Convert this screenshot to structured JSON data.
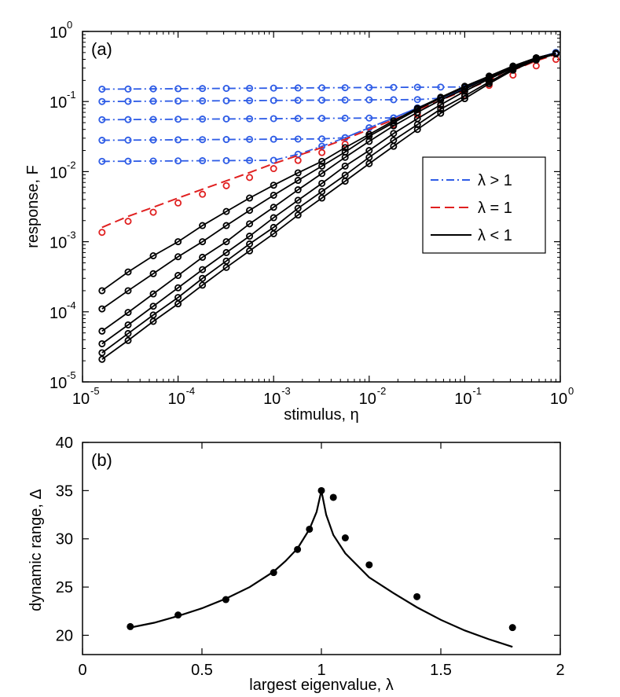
{
  "chart_data": [
    {
      "panel": "(a)",
      "type": "line",
      "scale": "log-log",
      "xlabel": "stimulus, η",
      "ylabel": "response, F",
      "xlim": [
        1e-05,
        1
      ],
      "ylim": [
        1e-05,
        1
      ],
      "xticks": [
        {
          "base": "10",
          "exp": "-5"
        },
        {
          "base": "10",
          "exp": "-4"
        },
        {
          "base": "10",
          "exp": "-3"
        },
        {
          "base": "10",
          "exp": "-2"
        },
        {
          "base": "10",
          "exp": "-1"
        },
        {
          "base": "10",
          "exp": "0"
        }
      ],
      "yticks": [
        {
          "base": "10",
          "exp": "-5"
        },
        {
          "base": "10",
          "exp": "-4"
        },
        {
          "base": "10",
          "exp": "-3"
        },
        {
          "base": "10",
          "exp": "-2"
        },
        {
          "base": "10",
          "exp": "-1"
        },
        {
          "base": "10",
          "exp": "0"
        }
      ],
      "legend_position": "center-right",
      "legend": [
        {
          "label": "λ > 1",
          "style": "dash-dot",
          "color": "#2e5ce6"
        },
        {
          "label": "λ = 1",
          "style": "dashed",
          "color": "#e02020"
        },
        {
          "label": "λ < 1",
          "style": "solid",
          "color": "#000000"
        }
      ],
      "x": [
        1.6e-05,
        3e-05,
        5.5e-05,
        0.0001,
        0.00018,
        0.00032,
        0.00056,
        0.001,
        0.0018,
        0.0032,
        0.0056,
        0.01,
        0.018,
        0.032,
        0.056,
        0.1,
        0.18,
        0.32,
        0.56,
        0.9
      ],
      "series_below": [
        {
          "lambda": 0.2,
          "values": [
            2.1e-05,
            3.9e-05,
            7.3e-05,
            0.00013,
            0.00024,
            0.00043,
            0.00074,
            0.0013,
            0.0024,
            0.0042,
            0.0073,
            0.013,
            0.023,
            0.04,
            0.068,
            0.11,
            0.18,
            0.28,
            0.39,
            0.48
          ]
        },
        {
          "lambda": 0.4,
          "values": [
            2.6e-05,
            4.9e-05,
            9e-05,
            0.00016,
            0.0003,
            0.00053,
            0.00093,
            0.0016,
            0.003,
            0.0052,
            0.0089,
            0.016,
            0.028,
            0.047,
            0.078,
            0.12,
            0.19,
            0.29,
            0.4,
            0.48
          ]
        },
        {
          "lambda": 0.6,
          "values": [
            3.5e-05,
            6.5e-05,
            0.00012,
            0.00022,
            0.0004,
            0.0007,
            0.0012,
            0.0022,
            0.0039,
            0.0068,
            0.012,
            0.02,
            0.035,
            0.057,
            0.09,
            0.14,
            0.21,
            0.3,
            0.41,
            0.48
          ]
        },
        {
          "lambda": 0.8,
          "values": [
            5.3e-05,
            9.8e-05,
            0.00018,
            0.00033,
            0.0006,
            0.001,
            0.0018,
            0.0031,
            0.0055,
            0.0094,
            0.016,
            0.027,
            0.045,
            0.07,
            0.105,
            0.15,
            0.22,
            0.31,
            0.42,
            0.48
          ]
        },
        {
          "lambda": 0.9,
          "values": [
            0.00011,
            0.0002,
            0.00035,
            0.00061,
            0.001,
            0.0017,
            0.0028,
            0.0046,
            0.0075,
            0.012,
            0.019,
            0.032,
            0.05,
            0.077,
            0.112,
            0.16,
            0.23,
            0.32,
            0.42,
            0.49
          ]
        },
        {
          "lambda": 0.95,
          "values": [
            0.0002,
            0.00037,
            0.00063,
            0.001,
            0.0017,
            0.0027,
            0.0042,
            0.0064,
            0.0096,
            0.014,
            0.022,
            0.034,
            0.053,
            0.08,
            0.115,
            0.165,
            0.23,
            0.32,
            0.42,
            0.49
          ]
        }
      ],
      "series_critical": {
        "lambda": 1,
        "values": [
          0.0016,
          0.0023,
          0.0031,
          0.0042,
          0.0056,
          0.0074,
          0.0097,
          0.013,
          0.017,
          0.022,
          0.029,
          0.04,
          0.055,
          0.076,
          0.104,
          0.145,
          0.2,
          0.28,
          0.38,
          0.47
        ]
      },
      "series_above": [
        {
          "lambda": 1.05,
          "plateau": 0.014
        },
        {
          "lambda": 1.1,
          "plateau": 0.028
        },
        {
          "lambda": 1.2,
          "plateau": 0.055
        },
        {
          "lambda": 1.4,
          "plateau": 0.1
        },
        {
          "lambda": 1.6,
          "plateau": 0.15
        }
      ]
    },
    {
      "panel": "(b)",
      "type": "line",
      "xlabel": "largest eigenvalue, λ",
      "ylabel": "dynamic range, Δ",
      "xlim": [
        0,
        2
      ],
      "ylim": [
        18,
        40
      ],
      "xticks": [
        "0",
        "0.5",
        "1",
        "1.5",
        "2"
      ],
      "yticks": [
        "20",
        "25",
        "30",
        "35",
        "40"
      ],
      "points_x": [
        0.2,
        0.4,
        0.6,
        0.8,
        0.9,
        0.95,
        1.0,
        1.05,
        1.1,
        1.2,
        1.4,
        1.8
      ],
      "points_y": [
        20.9,
        22.1,
        23.7,
        26.5,
        28.9,
        31.0,
        35.0,
        34.3,
        30.1,
        27.3,
        24.0,
        20.8
      ],
      "theory_x": [
        0.2,
        0.3,
        0.4,
        0.5,
        0.6,
        0.7,
        0.8,
        0.85,
        0.9,
        0.95,
        0.98,
        1.0,
        1.02,
        1.05,
        1.1,
        1.2,
        1.3,
        1.4,
        1.5,
        1.6,
        1.7,
        1.8
      ],
      "theory_y": [
        20.8,
        21.3,
        22.0,
        22.8,
        23.8,
        25.0,
        26.6,
        27.7,
        29.0,
        31.0,
        32.8,
        35.0,
        32.5,
        30.4,
        28.5,
        26.0,
        24.4,
        22.9,
        21.6,
        20.5,
        19.6,
        18.8
      ]
    }
  ]
}
